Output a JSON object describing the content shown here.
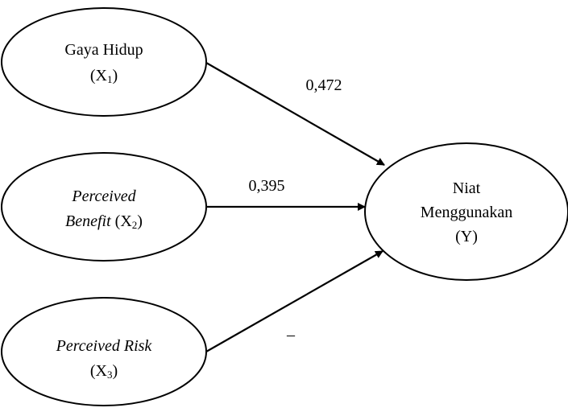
{
  "nodes": {
    "x1": {
      "line1": "Gaya Hidup",
      "paren_open": "(X",
      "sub": "1",
      "paren_close": ")"
    },
    "x2": {
      "line1": "Perceived",
      "line2_italic": "Benefit",
      "paren_open": " (X",
      "sub": "2",
      "paren_close": ")"
    },
    "x3": {
      "line1": "Perceived Risk",
      "paren_open": "(X",
      "sub": "3",
      "paren_close": ")"
    },
    "y": {
      "line1": "Niat",
      "line2": "Menggunakan",
      "line3": "(Y)"
    }
  },
  "paths": {
    "x1_to_y": "0,472",
    "x2_to_y": "0,395",
    "x3_to_y": "–"
  },
  "colors": {
    "stroke": "#000000",
    "background": "#ffffff"
  }
}
